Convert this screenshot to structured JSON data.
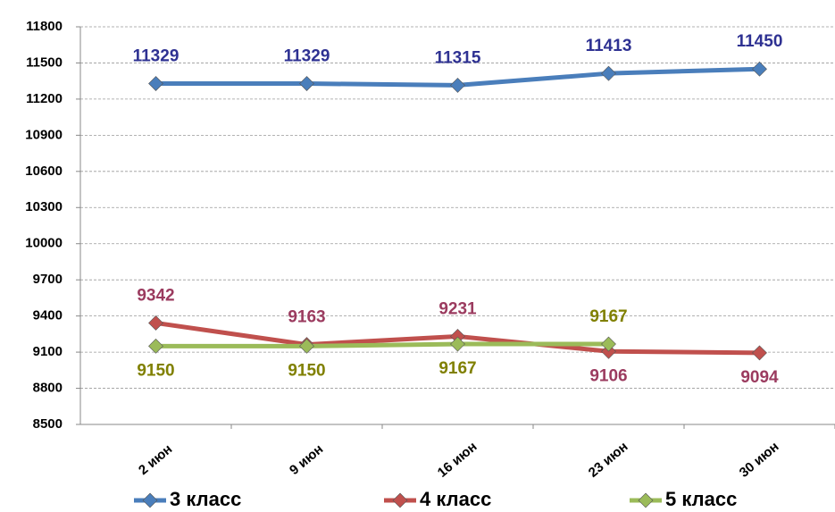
{
  "chart_data": {
    "type": "line",
    "categories": [
      "2 июн",
      "9 июн",
      "16 июн",
      "23 июн",
      "30 июн"
    ],
    "series": [
      {
        "name": "3 класс",
        "color": "#4a7ebb",
        "label_color": "#2e3192",
        "values": [
          11329,
          11329,
          11315,
          11413,
          11450
        ]
      },
      {
        "name": "4 класс",
        "color": "#c0504d",
        "label_color": "#9b3b5f",
        "values": [
          9342,
          9163,
          9231,
          9106,
          9094
        ]
      },
      {
        "name": "5 класс",
        "color": "#9bbb59",
        "label_color": "#808000",
        "values": [
          9150,
          9150,
          9167,
          9167,
          null
        ]
      }
    ],
    "ylim": [
      8500,
      11800
    ],
    "yticks": [
      8500,
      8800,
      9100,
      9400,
      9700,
      10000,
      10300,
      10600,
      10900,
      11200,
      11500,
      11800
    ],
    "grid": true,
    "legend": "bottom"
  }
}
